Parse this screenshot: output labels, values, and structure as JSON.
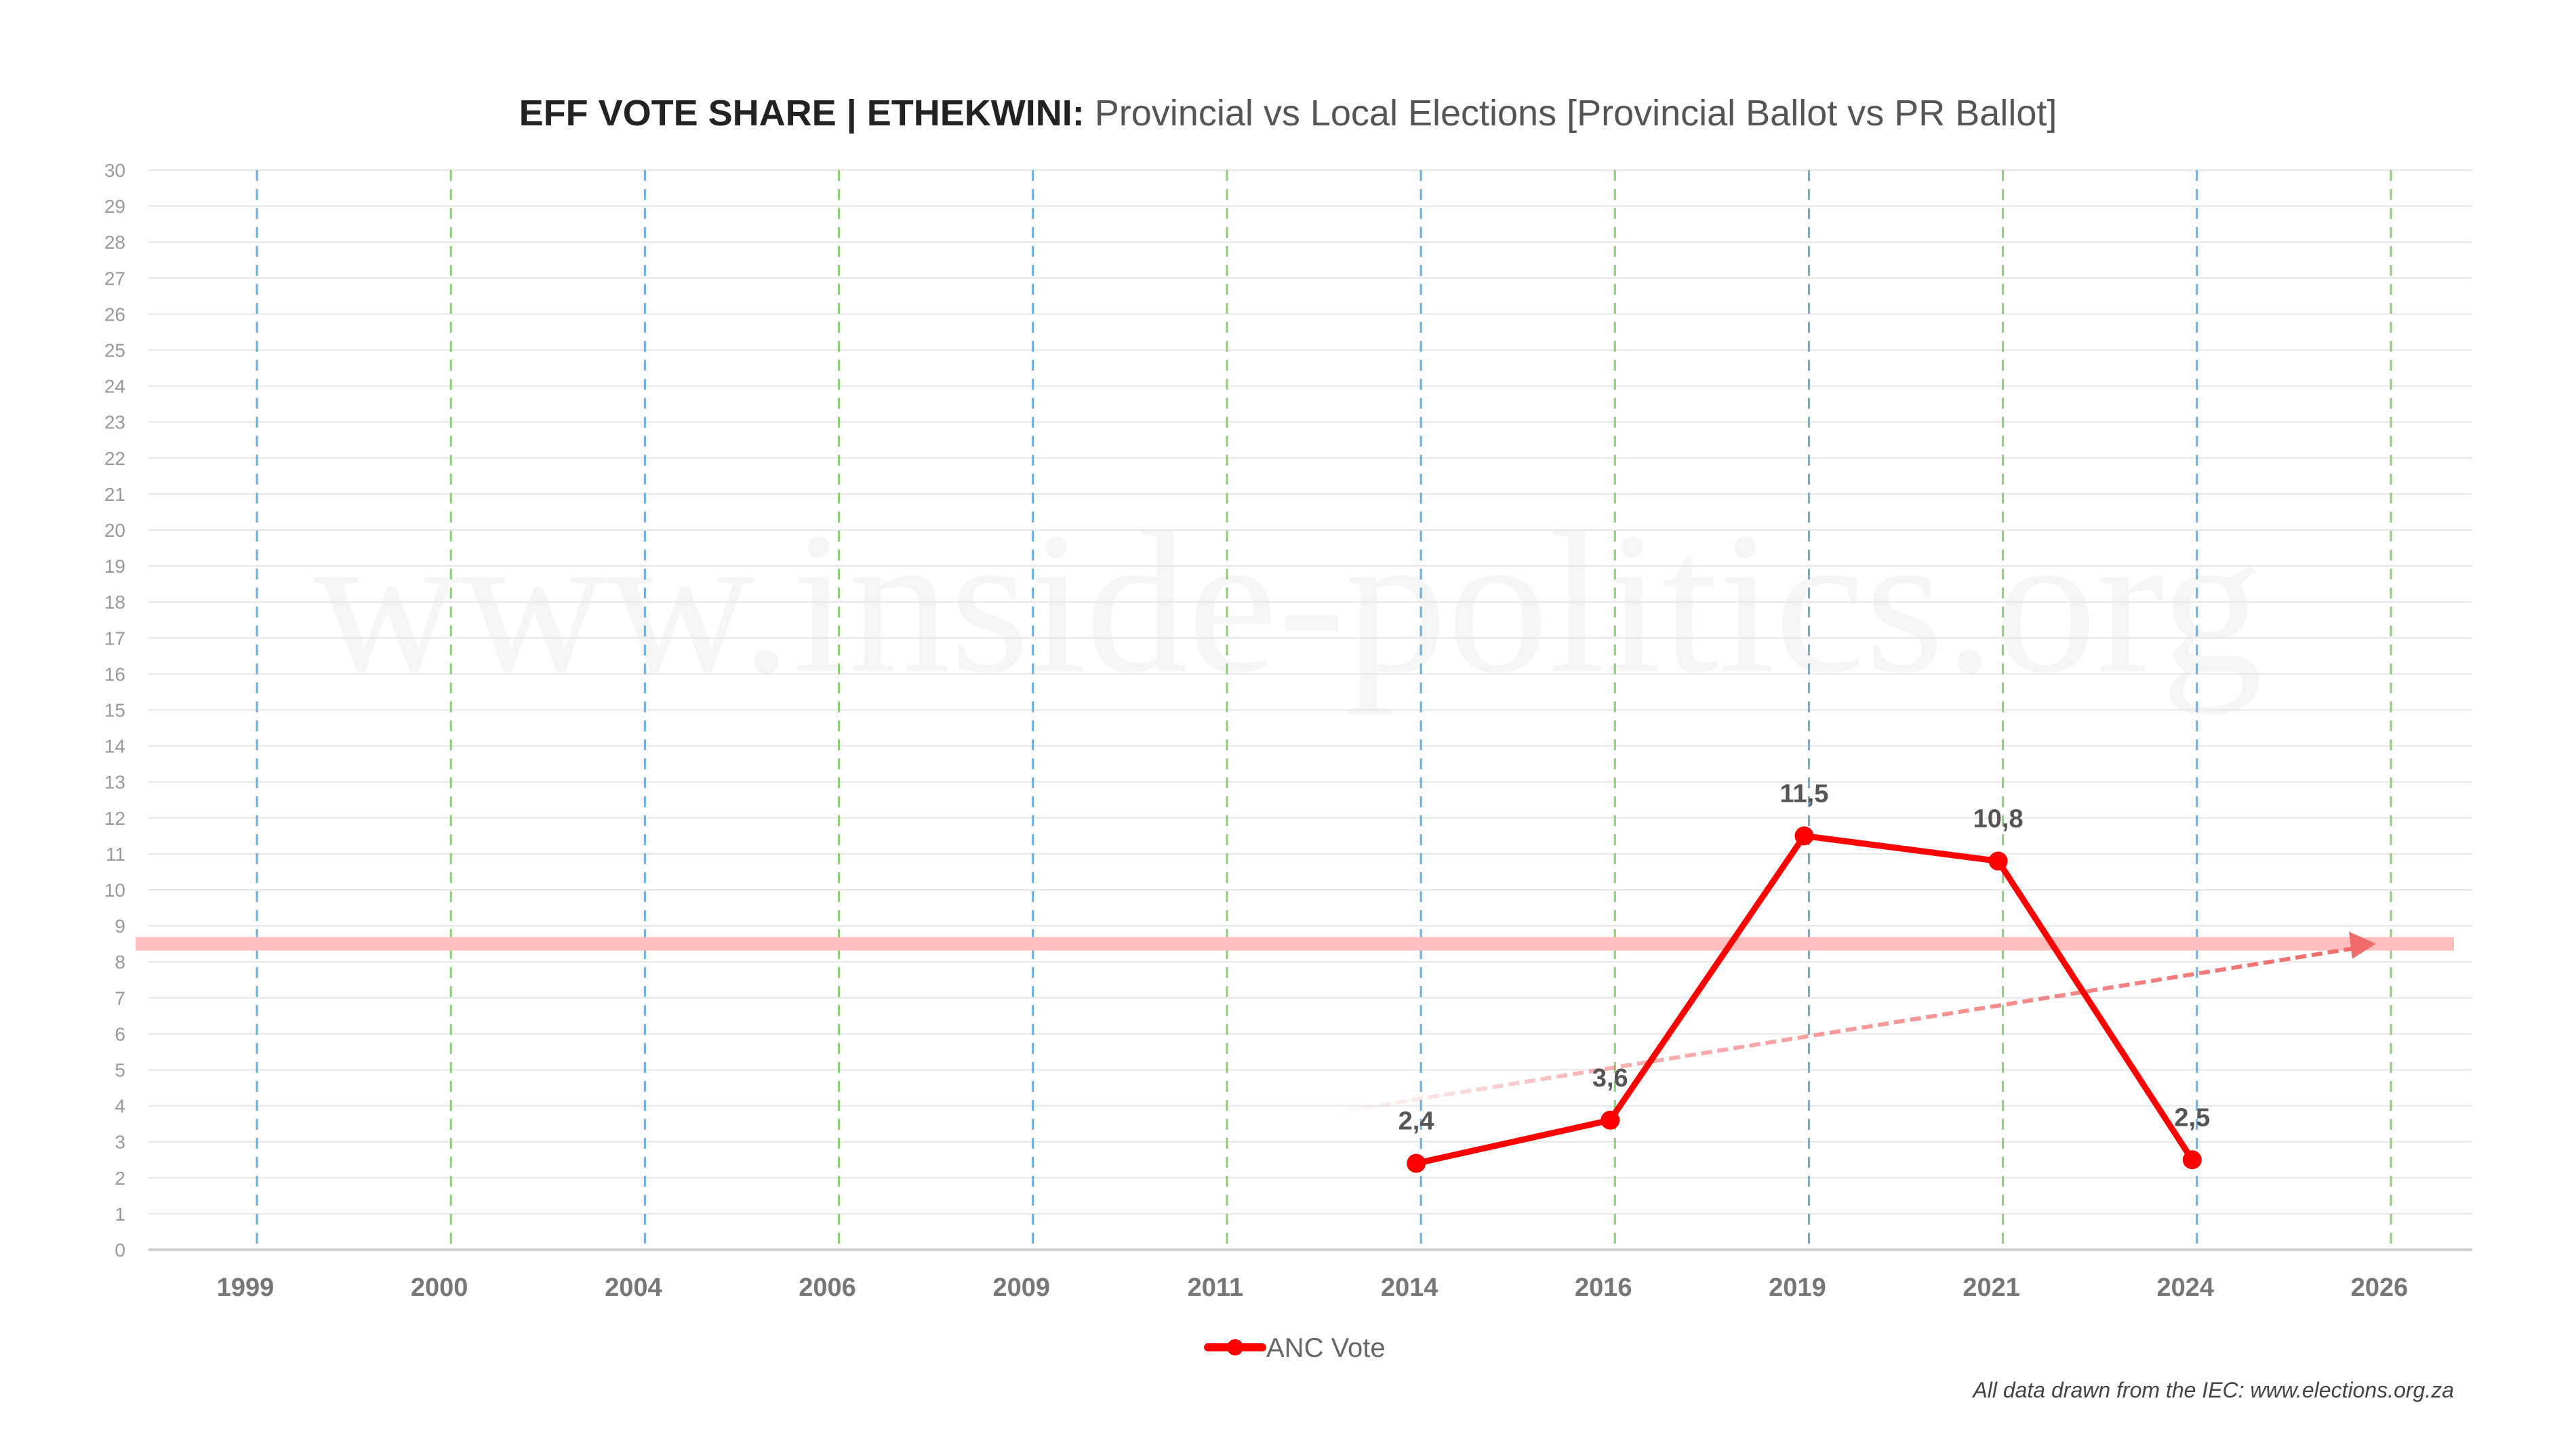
{
  "chart_data": {
    "type": "line",
    "title_bold": "EFF VOTE SHARE | ETHEKWINI:",
    "title_rest": " Provincial vs Local Elections [Provincial Ballot vs PR Ballot]",
    "xlabel": "",
    "ylabel": "",
    "ylim": [
      0,
      30
    ],
    "yticks": [
      "0",
      "1",
      "2",
      "3",
      "4",
      "5",
      "6",
      "7",
      "8",
      "9",
      "10",
      "11",
      "12",
      "13",
      "14",
      "15",
      "16",
      "17",
      "18",
      "19",
      "20",
      "21",
      "22",
      "23",
      "24",
      "25",
      "26",
      "27",
      "28",
      "29",
      "30"
    ],
    "categories": [
      "1999",
      "2000",
      "2004",
      "2006",
      "2009",
      "2011",
      "2014",
      "2016",
      "2019",
      "2021",
      "2024",
      "2026"
    ],
    "election_type": [
      "provincial",
      "local",
      "provincial",
      "local",
      "provincial",
      "local",
      "provincial",
      "local",
      "provincial",
      "local",
      "provincial",
      "local"
    ],
    "series": [
      {
        "name": "ANC Vote",
        "color": "#ff0000",
        "values": [
          null,
          null,
          null,
          null,
          null,
          null,
          2.4,
          3.6,
          11.5,
          10.8,
          2.5,
          null
        ],
        "labels": [
          "",
          "",
          "",
          "",
          "",
          "",
          "2,4",
          "3,6",
          "11,5",
          "10,8",
          "2,5",
          ""
        ]
      }
    ],
    "reference_band": {
      "value": 8.5,
      "color": "#ffbfbf"
    },
    "trend_arrow": {
      "from": {
        "x_index": 5.6,
        "value": 3.8
      },
      "to": {
        "x_index": 11,
        "value": 8.5
      },
      "color": "#f26b6b"
    },
    "gridline_colors": {
      "provincial": "#6aaee0",
      "local": "#8fcc78"
    },
    "grid": true,
    "legend_position": "bottom-center",
    "source_note": "All data drawn from the IEC: www.elections.org.za",
    "watermark": "www.inside-politics.org"
  }
}
